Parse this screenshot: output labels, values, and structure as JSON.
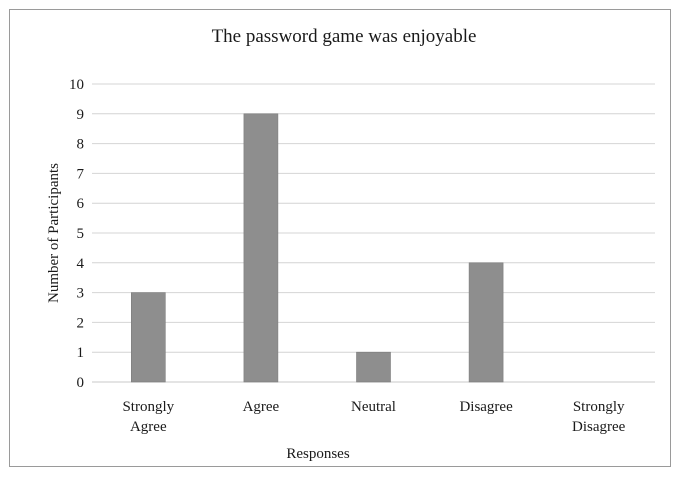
{
  "chart_data": {
    "type": "bar",
    "title": "The password game was enjoyable",
    "xlabel": "Responses",
    "ylabel": "Number of Participants",
    "categories": [
      "Strongly Agree",
      "Agree",
      "Neutral",
      "Disagree",
      "Strongly Disagree"
    ],
    "values": [
      3,
      9,
      1,
      4,
      0
    ],
    "ylim": [
      0,
      10
    ],
    "yticks": [
      "0",
      "1",
      "2",
      "3",
      "4",
      "5",
      "6",
      "7",
      "8",
      "9",
      "10"
    ],
    "grid": true,
    "legend": "none",
    "bar_color": "#8e8e8e"
  }
}
